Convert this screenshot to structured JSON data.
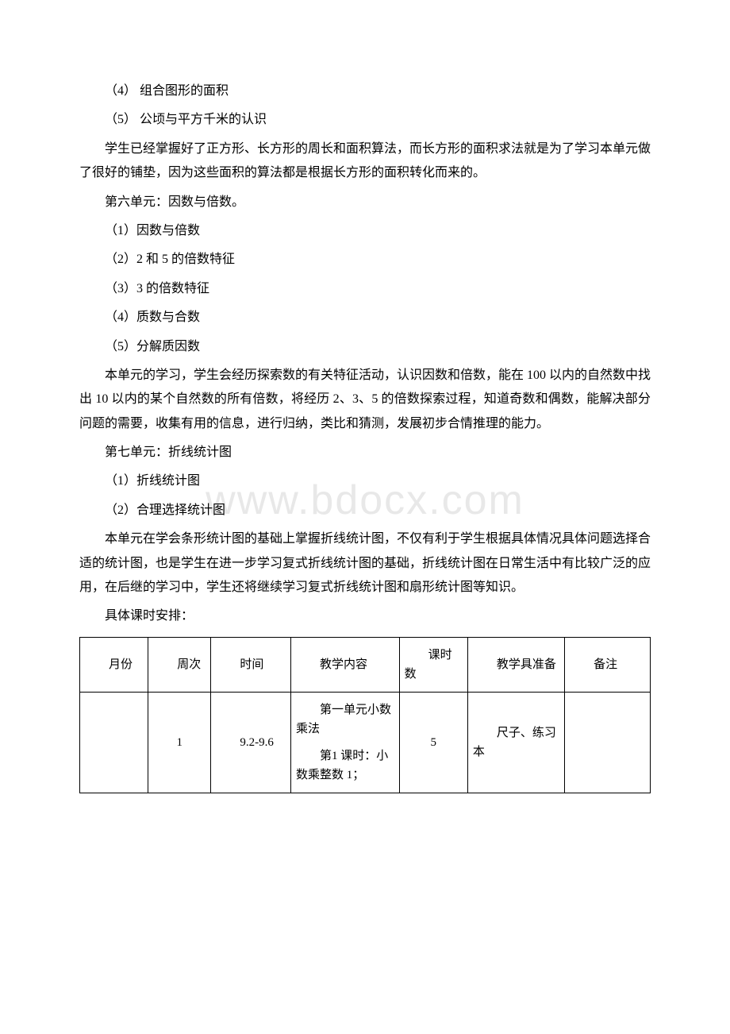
{
  "watermark": "www.bdocx.com",
  "lines": {
    "l1": "（4） 组合图形的面积",
    "l2": "（5） 公顷与平方千米的认识",
    "l3": "学生已经掌握好了正方形、长方形的周长和面积算法，而长方形的面积求法就是为了学习本单元做了很好的铺垫，因为这些面积的算法都是根据长方形的面积转化而来的。",
    "l4": "第六单元：因数与倍数。",
    "l5": "（1）因数与倍数",
    "l6": "（2）2 和 5 的倍数特征",
    "l7": "（3）3 的倍数特征",
    "l8": "（4）质数与合数",
    "l9": "（5）分解质因数",
    "l10": "本单元的学习，学生会经历探索数的有关特征活动，认识因数和倍数，能在 100 以内的自然数中找出 10 以内的某个自然数的所有倍数，将经历 2、3、5 的倍数探索过程，知道奇数和偶数，能解决部分问题的需要，收集有用的信息，进行归纳，类比和猜测，发展初步合情推理的能力。",
    "l11": "第七单元：折线统计图",
    "l12": "（1）折线统计图",
    "l13": "（2）合理选择统计图",
    "l14": "本单元在学会条形统计图的基础上掌握折线统计图，不仅有利于学生根据具体情况具体问题选择合适的统计图，也是学生在进一步学习复式折线统计图的基础，折线统计图在日常生活中有比较广泛的应用，在后继的学习中，学生还将继续学习复式折线统计图和扇形统计图等知识。",
    "l15": "具体课时安排："
  },
  "table": {
    "headers": {
      "h1": "月份",
      "h2": "周次",
      "h3": "时间",
      "h4": "教学内容",
      "h5": "课时数",
      "h6": "教学具准备",
      "h7": "备注"
    },
    "row1": {
      "c1": "",
      "c2": "1",
      "c3": "9.2-9.6",
      "c4a": "第一单元小数乘法",
      "c4b": "第1 课时：小数乘整数 1；",
      "c5": "5",
      "c6": "尺子、练习本",
      "c7": ""
    },
    "colwidths": {
      "w1": "12%",
      "w2": "11%",
      "w3": "14%",
      "w4": "19%",
      "w5": "12%",
      "w6": "17%",
      "w7": "15%"
    }
  }
}
